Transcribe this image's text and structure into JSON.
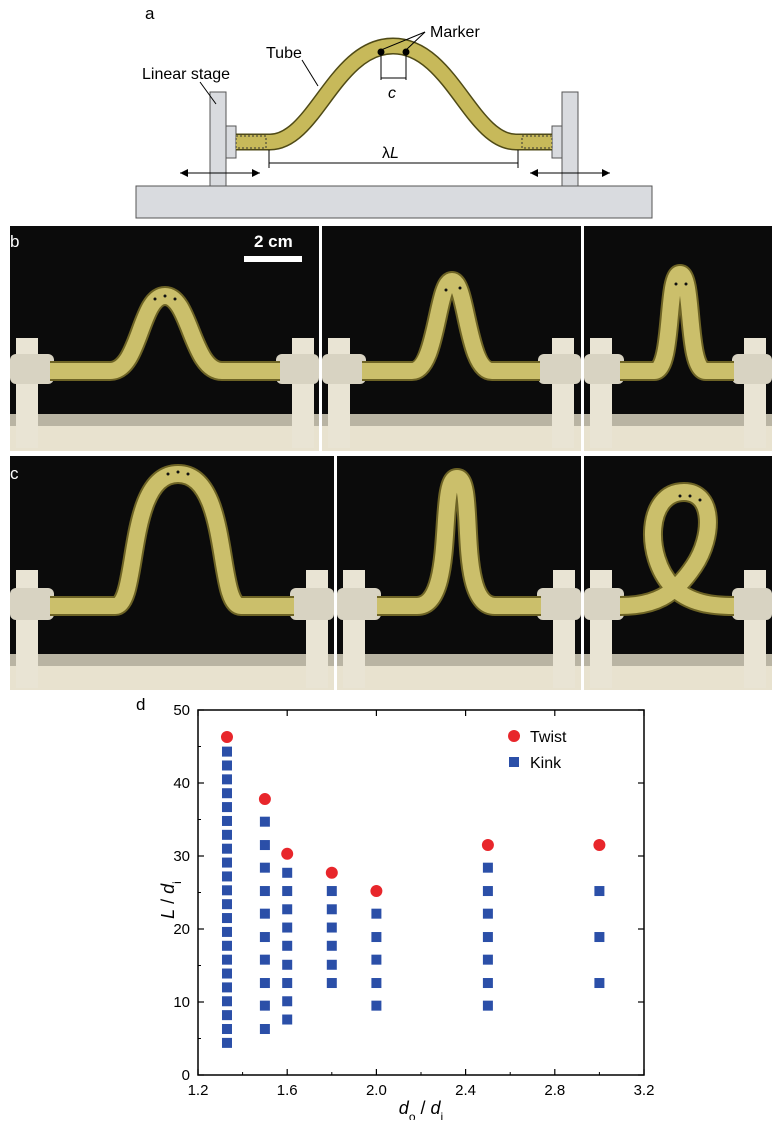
{
  "panel_a": {
    "letter": "a",
    "labels": {
      "marker": "Marker",
      "tube": "Tube",
      "stage": "Linear stage",
      "c": "c",
      "lambda_prefix": "λ",
      "lambda_L": "L"
    },
    "colors": {
      "tube": "#c7b95a",
      "tube_edge": "#4f4a16",
      "stage": "#d9dbdf"
    }
  },
  "panel_b": {
    "letter": "b",
    "scale_bar": "2 cm"
  },
  "panel_c": {
    "letter": "c"
  },
  "panel_d": {
    "letter": "d"
  },
  "chart_data": {
    "type": "scatter",
    "title": "",
    "xlabel": {
      "main": "d",
      "sub1": "o",
      "sep": " / ",
      "main2": "d",
      "sub2": "i"
    },
    "ylabel": {
      "main": "L",
      "sep": " / ",
      "main2": "d",
      "sub2": "i"
    },
    "xlim": [
      1.2,
      3.2
    ],
    "ylim": [
      0,
      50
    ],
    "xticks": [
      "1.2",
      "1.6",
      "2.0",
      "2.4",
      "2.8",
      "3.2"
    ],
    "yticks": [
      "0",
      "10",
      "20",
      "30",
      "40",
      "50"
    ],
    "legend_position": "top-right",
    "series": [
      {
        "name": "Twist",
        "marker": "circle",
        "color": "#e8262b",
        "points": [
          [
            1.33,
            46.3
          ],
          [
            1.5,
            37.8
          ],
          [
            1.6,
            30.3
          ],
          [
            1.8,
            27.7
          ],
          [
            2.0,
            25.2
          ],
          [
            2.5,
            31.5
          ],
          [
            3.0,
            31.5
          ]
        ]
      },
      {
        "name": "Kink",
        "marker": "square",
        "color": "#2b4fa8",
        "points": [
          [
            1.33,
            4.4
          ],
          [
            1.33,
            6.3
          ],
          [
            1.33,
            8.2
          ],
          [
            1.33,
            10.1
          ],
          [
            1.33,
            12.0
          ],
          [
            1.33,
            13.9
          ],
          [
            1.33,
            15.8
          ],
          [
            1.33,
            17.7
          ],
          [
            1.33,
            19.6
          ],
          [
            1.33,
            21.5
          ],
          [
            1.33,
            23.4
          ],
          [
            1.33,
            25.3
          ],
          [
            1.33,
            27.2
          ],
          [
            1.33,
            29.1
          ],
          [
            1.33,
            31.0
          ],
          [
            1.33,
            32.9
          ],
          [
            1.33,
            34.8
          ],
          [
            1.33,
            36.7
          ],
          [
            1.33,
            38.6
          ],
          [
            1.33,
            40.5
          ],
          [
            1.33,
            42.4
          ],
          [
            1.33,
            44.3
          ],
          [
            1.5,
            6.3
          ],
          [
            1.5,
            9.5
          ],
          [
            1.5,
            12.6
          ],
          [
            1.5,
            15.8
          ],
          [
            1.5,
            18.9
          ],
          [
            1.5,
            22.1
          ],
          [
            1.5,
            25.2
          ],
          [
            1.5,
            28.4
          ],
          [
            1.5,
            31.5
          ],
          [
            1.5,
            34.7
          ],
          [
            1.6,
            7.6
          ],
          [
            1.6,
            10.1
          ],
          [
            1.6,
            12.6
          ],
          [
            1.6,
            15.1
          ],
          [
            1.6,
            17.7
          ],
          [
            1.6,
            20.2
          ],
          [
            1.6,
            22.7
          ],
          [
            1.6,
            25.2
          ],
          [
            1.6,
            27.7
          ],
          [
            1.8,
            12.6
          ],
          [
            1.8,
            15.1
          ],
          [
            1.8,
            17.7
          ],
          [
            1.8,
            20.2
          ],
          [
            1.8,
            22.7
          ],
          [
            1.8,
            25.2
          ],
          [
            2.0,
            9.5
          ],
          [
            2.0,
            12.6
          ],
          [
            2.0,
            15.8
          ],
          [
            2.0,
            18.9
          ],
          [
            2.0,
            22.1
          ],
          [
            2.5,
            9.5
          ],
          [
            2.5,
            12.6
          ],
          [
            2.5,
            15.8
          ],
          [
            2.5,
            18.9
          ],
          [
            2.5,
            22.1
          ],
          [
            2.5,
            25.2
          ],
          [
            2.5,
            28.4
          ],
          [
            3.0,
            12.6
          ],
          [
            3.0,
            18.9
          ],
          [
            3.0,
            25.2
          ]
        ]
      }
    ]
  }
}
